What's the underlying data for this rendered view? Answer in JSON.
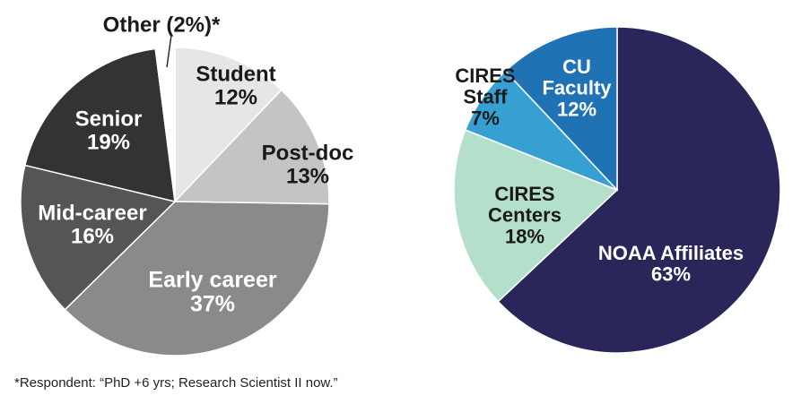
{
  "chart_data": [
    {
      "type": "pie",
      "title": "",
      "start": "top, clockwise",
      "slices": [
        {
          "label": "Student",
          "value": 12,
          "value_label": "12%",
          "color": "#e6e6e6",
          "text_color": "#1a1a1a"
        },
        {
          "label": "Post-doc",
          "value": 13,
          "value_label": "13%",
          "color": "#c4c4c4",
          "text_color": "#1a1a1a"
        },
        {
          "label": "Early career",
          "value": 37,
          "value_label": "37%",
          "color": "#8a8a8a",
          "text_color": "#ffffff"
        },
        {
          "label": "Mid-career",
          "value": 16,
          "value_label": "16%",
          "color": "#555555",
          "text_color": "#ffffff"
        },
        {
          "label": "Senior",
          "value": 19,
          "value_label": "19%",
          "color": "#333333",
          "text_color": "#ffffff"
        },
        {
          "label": "Other (2%)*",
          "value": 2,
          "value_label": "",
          "color": "#ffffff",
          "text_color": "#1a1a1a"
        }
      ]
    },
    {
      "type": "pie",
      "title": "",
      "start": "top, clockwise",
      "slices": [
        {
          "label": "NOAA Affiliates",
          "value": 63,
          "value_label": "63%",
          "color": "#2a2659",
          "text_color": "#ffffff"
        },
        {
          "label": "CIRES Centers",
          "value": 18,
          "value_label": "18%",
          "color": "#b4dfcb",
          "text_color": "#1a1a1a"
        },
        {
          "label": "CIRES Staff",
          "value": 7,
          "value_label": "7%",
          "color": "#36a0d3",
          "text_color": "#1a1a1a"
        },
        {
          "label": "CU Faculty",
          "value": 12,
          "value_label": "12%",
          "color": "#1f73b4",
          "text_color": "#ffffff"
        }
      ]
    }
  ],
  "footnote": "*Respondent: “PhD +6 yrs; Research Scientist II now.”"
}
